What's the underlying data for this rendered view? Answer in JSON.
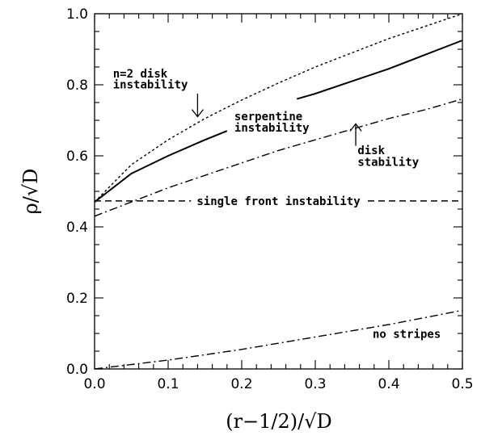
{
  "chart_data": {
    "type": "line",
    "xlabel": "(r−1/2)/√D",
    "ylabel": "ρ/√D",
    "xlim": [
      0.0,
      0.5
    ],
    "ylim": [
      0.0,
      1.0
    ],
    "x_ticks": [
      "0.0",
      "0.1",
      "0.2",
      "0.3",
      "0.4",
      "0.5"
    ],
    "y_ticks": [
      "0.0",
      "0.2",
      "0.4",
      "0.6",
      "0.8",
      "1.0"
    ],
    "grid": false,
    "series": [
      {
        "key": "n2_disk",
        "style": "dotted",
        "x": [
          0.0,
          0.05,
          0.1,
          0.15,
          0.2,
          0.25,
          0.3,
          0.35,
          0.4,
          0.45,
          0.5
        ],
        "y": [
          0.47,
          0.575,
          0.645,
          0.705,
          0.757,
          0.805,
          0.85,
          0.89,
          0.93,
          0.965,
          1.0
        ]
      },
      {
        "key": "serpentine_a",
        "style": "solid",
        "x": [
          0.0,
          0.05,
          0.1,
          0.15,
          0.18
        ],
        "y": [
          0.47,
          0.55,
          0.6,
          0.645,
          0.67
        ]
      },
      {
        "key": "serpentine_b",
        "style": "solid",
        "x": [
          0.275,
          0.3,
          0.35,
          0.4,
          0.45,
          0.5
        ],
        "y": [
          0.76,
          0.775,
          0.81,
          0.845,
          0.885,
          0.925
        ]
      },
      {
        "key": "disk_stability",
        "style": "dash-dot",
        "x": [
          0.0,
          0.05,
          0.1,
          0.15,
          0.2,
          0.25,
          0.3,
          0.35,
          0.4,
          0.45,
          0.5
        ],
        "y": [
          0.43,
          0.47,
          0.51,
          0.545,
          0.58,
          0.615,
          0.645,
          0.675,
          0.705,
          0.73,
          0.76
        ]
      },
      {
        "key": "single_front",
        "style": "dashed",
        "x": [
          0.0,
          0.5
        ],
        "y": [
          0.473,
          0.473
        ]
      },
      {
        "key": "no_stripes",
        "style": "dash-dot",
        "x": [
          0.0,
          0.1,
          0.2,
          0.3,
          0.4,
          0.5
        ],
        "y": [
          0.0,
          0.025,
          0.055,
          0.09,
          0.125,
          0.165
        ]
      }
    ],
    "annotations": [
      {
        "text": "n=2 disk",
        "x": 0.025,
        "y": 0.82
      },
      {
        "text": "instability",
        "x": 0.025,
        "y": 0.79
      },
      {
        "text": "serpentine",
        "x": 0.19,
        "y": 0.7
      },
      {
        "text": "instability",
        "x": 0.19,
        "y": 0.668
      },
      {
        "text": "disk",
        "x": 0.3575,
        "y": 0.604
      },
      {
        "text": "stability",
        "x": 0.3575,
        "y": 0.572
      },
      {
        "text": "single front instability",
        "x": 0.25,
        "y": 0.473
      },
      {
        "text": "no stripes",
        "x": 0.378,
        "y": 0.087
      }
    ],
    "arrows": [
      {
        "direction": "down",
        "x": 0.14,
        "y_from": 0.775,
        "y_to": 0.71
      },
      {
        "direction": "up",
        "x": 0.355,
        "y_from": 0.628,
        "y_to": 0.69
      }
    ]
  }
}
